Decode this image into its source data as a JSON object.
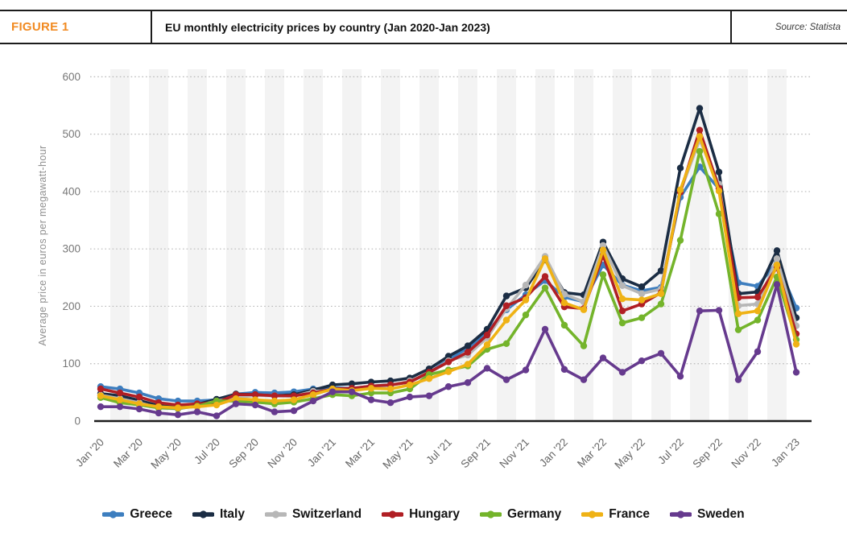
{
  "header": {
    "figure_label": "FIGURE 1",
    "title": "EU monthly electricity prices by country (Jan 2020-Jan 2023)",
    "source": "Source: Statista"
  },
  "colors": {
    "accent_orange": "#F18A21",
    "axis_text": "#777777",
    "tick_text": "#666666",
    "grid_line": "#b9b9b9",
    "axis_line": "#1c1c1c",
    "stripe": "#f3f3f3"
  },
  "chart_data": {
    "type": "line",
    "ylabel": "Average price in euros per megawatt-hour",
    "ylim": [
      0,
      620
    ],
    "yticks": [
      0,
      100,
      200,
      300,
      400,
      500,
      600
    ],
    "grid": "horizontal-dotted",
    "legend_position": "bottom",
    "x": [
      "Jan '20",
      "Feb '20",
      "Mar '20",
      "Apr '20",
      "May '20",
      "Jun '20",
      "Jul '20",
      "Aug '20",
      "Sep '20",
      "Oct '20",
      "Nov '20",
      "Dec '20",
      "Jan '21",
      "Feb '21",
      "Mar '21",
      "Apr '21",
      "May '21",
      "Jun '21",
      "Jul '21",
      "Aug '21",
      "Sep '21",
      "Oct '21",
      "Nov '21",
      "Dec '21",
      "Jan '22",
      "Feb '22",
      "Mar '22",
      "Apr '22",
      "May '22",
      "Jun '22",
      "Jul '22",
      "Aug '22",
      "Sep '22",
      "Oct '22",
      "Nov '22",
      "Dec '22",
      "Jan '23"
    ],
    "x_tick_labels": [
      "Jan '20",
      "Mar '20",
      "May '20",
      "Jul '20",
      "Sep '20",
      "Nov '20",
      "Jan '21",
      "Mar '21",
      "May '21",
      "Jul '21",
      "Sep '21",
      "Nov '21",
      "Jan '22",
      "Mar '22",
      "May '22",
      "Jul '22",
      "Sep '22",
      "Nov '22",
      "Jan '23"
    ],
    "series": [
      {
        "name": "Greece",
        "color": "#3D7EBF",
        "values": [
          60,
          56,
          49,
          39,
          35,
          35,
          37,
          47,
          50,
          49,
          51,
          56,
          58,
          57,
          61,
          63,
          68,
          84,
          107,
          127,
          156,
          194,
          220,
          245,
          216,
          208,
          272,
          237,
          227,
          233,
          390,
          443,
          405,
          241,
          235,
          277,
          197
        ]
      },
      {
        "name": "Italy",
        "color": "#1B2D44",
        "values": [
          48,
          44,
          36,
          27,
          24,
          29,
          38,
          47,
          46,
          44,
          46,
          54,
          63,
          65,
          68,
          70,
          75,
          91,
          113,
          131,
          160,
          218,
          232,
          281,
          224,
          220,
          312,
          248,
          234,
          262,
          441,
          545,
          434,
          222,
          225,
          297,
          180
        ]
      },
      {
        "name": "Switzerland",
        "color": "#B7B7B7",
        "values": [
          45,
          39,
          32,
          23,
          21,
          27,
          35,
          42,
          44,
          44,
          43,
          52,
          53,
          55,
          58,
          62,
          70,
          83,
          105,
          115,
          145,
          196,
          237,
          287,
          221,
          208,
          306,
          236,
          222,
          230,
          400,
          490,
          413,
          201,
          204,
          283,
          166
        ]
      },
      {
        "name": "Hungary",
        "color": "#B01F24",
        "values": [
          56,
          49,
          42,
          32,
          28,
          30,
          32,
          46,
          46,
          44,
          44,
          49,
          56,
          57,
          61,
          63,
          68,
          85,
          103,
          120,
          150,
          201,
          215,
          252,
          199,
          196,
          289,
          192,
          204,
          224,
          399,
          507,
          406,
          215,
          216,
          268,
          152
        ]
      },
      {
        "name": "Germany",
        "color": "#74B42B",
        "values": [
          41,
          32,
          28,
          23,
          22,
          26,
          35,
          35,
          33,
          30,
          33,
          39,
          46,
          44,
          49,
          49,
          56,
          81,
          89,
          96,
          125,
          135,
          185,
          232,
          167,
          131,
          255,
          171,
          180,
          204,
          315,
          470,
          361,
          159,
          176,
          251,
          142
        ]
      },
      {
        "name": "France",
        "color": "#EFB215",
        "values": [
          44,
          37,
          30,
          25,
          23,
          25,
          28,
          39,
          37,
          35,
          37,
          46,
          56,
          53,
          57,
          56,
          63,
          74,
          86,
          99,
          133,
          176,
          211,
          283,
          206,
          194,
          298,
          213,
          211,
          222,
          403,
          496,
          401,
          187,
          192,
          272,
          134
        ]
      },
      {
        "name": "Sweden",
        "color": "#663A8E",
        "values": [
          25,
          25,
          21,
          14,
          11,
          16,
          9,
          30,
          28,
          16,
          18,
          35,
          51,
          51,
          37,
          32,
          42,
          44,
          60,
          67,
          92,
          72,
          89,
          160,
          90,
          72,
          110,
          85,
          105,
          118,
          78,
          192,
          193,
          72,
          121,
          238,
          85
        ]
      }
    ]
  }
}
